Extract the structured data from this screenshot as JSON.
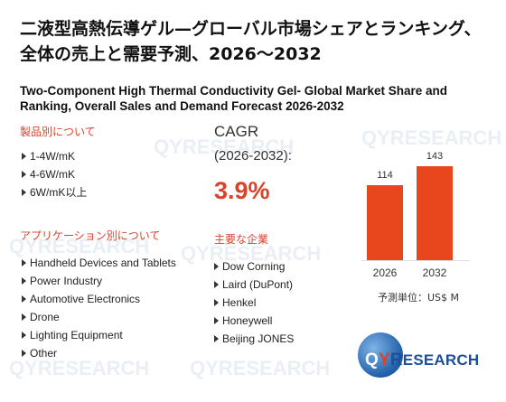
{
  "title_jp": "二液型高熱伝導ゲル—グローバル市場シェアとランキング、全体の売上と需要予測、2026～2032",
  "title_en": "Two-Component High Thermal Conductivity Gel- Global Market Share and Ranking, Overall Sales and Demand Forecast 2026-2032",
  "product_section": {
    "heading": "製品別について",
    "items": [
      "1-4W/mK",
      "4-6W/mK",
      "6W/mK以上"
    ]
  },
  "application_section": {
    "heading": "アプリケーション別について",
    "items": [
      "Handheld Devices and Tablets",
      "Power Industry",
      "Automotive Electronics",
      "Drone",
      "Lighting Equipment",
      "Other"
    ]
  },
  "cagr": {
    "label": "CAGR",
    "period": "(2026-2032):",
    "value": "3.9%"
  },
  "companies_section": {
    "heading": "主要な企業",
    "items": [
      "Dow Corning",
      "Laird (DuPont)",
      "Henkel",
      "Honeywell",
      "Beijing JONES"
    ]
  },
  "chart_data": {
    "type": "bar",
    "categories": [
      "2026",
      "2032"
    ],
    "values": [
      114,
      143
    ],
    "unit_label": "予測単位：US$ M",
    "colors": {
      "bar": "#e8471e"
    }
  },
  "logo": {
    "q": "Q",
    "y": "Y",
    "r": "R",
    "rest": "ESEARCH"
  },
  "watermark": "QYRESEARCH"
}
